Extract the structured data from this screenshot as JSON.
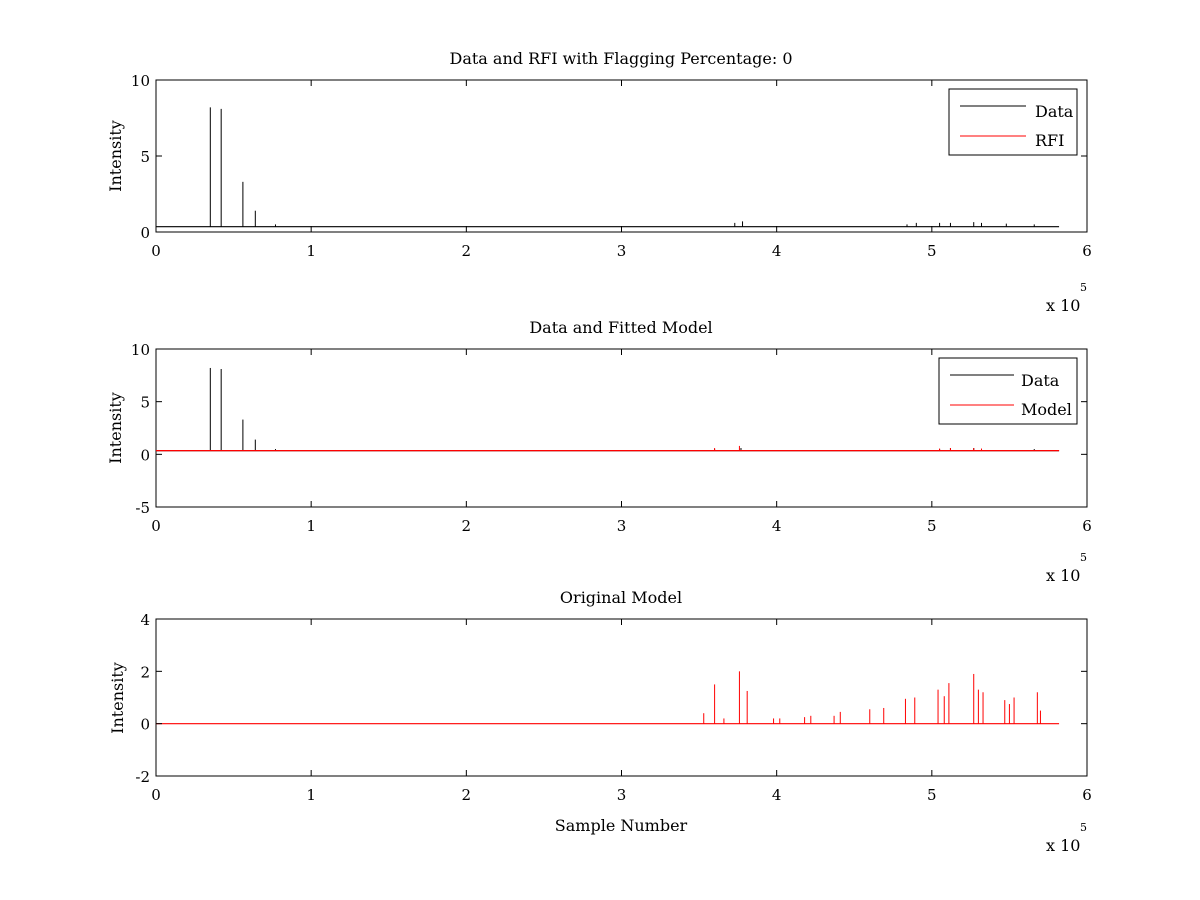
{
  "chart_data": [
    {
      "type": "line",
      "title": "Data and RFI with Flagging Percentage: 0",
      "ylabel": "Intensity",
      "xlabel": "",
      "xlim": [
        0,
        600000
      ],
      "ylim": [
        0,
        10
      ],
      "xticks": [
        0,
        1,
        2,
        3,
        4,
        5,
        6
      ],
      "yticks": [
        0,
        5,
        10
      ],
      "x_exponent": "x 10",
      "x_exponent_power": "5",
      "grid": false,
      "legend": "top-right",
      "baseline": 0.35,
      "series": [
        {
          "name": "Data",
          "color": "#000000",
          "spikes": [
            [
              35000,
              8.2
            ],
            [
              42000,
              8.1
            ],
            [
              56000,
              3.3
            ],
            [
              64000,
              1.4
            ],
            [
              77000,
              0.5
            ],
            [
              373000,
              0.6
            ],
            [
              378000,
              0.7
            ],
            [
              484000,
              0.5
            ],
            [
              490000,
              0.6
            ],
            [
              505000,
              0.6
            ],
            [
              512000,
              0.6
            ],
            [
              527000,
              0.65
            ],
            [
              532000,
              0.6
            ],
            [
              548000,
              0.55
            ],
            [
              566000,
              0.5
            ]
          ]
        },
        {
          "name": "RFI",
          "color": "#ff0000",
          "spikes": []
        }
      ]
    },
    {
      "type": "line",
      "title": "Data and Fitted Model",
      "ylabel": "Intensity",
      "xlabel": "",
      "xlim": [
        0,
        600000
      ],
      "ylim": [
        -5,
        10
      ],
      "xticks": [
        0,
        1,
        2,
        3,
        4,
        5,
        6
      ],
      "yticks": [
        -5,
        0,
        5,
        10
      ],
      "x_exponent": "x 10",
      "x_exponent_power": "5",
      "grid": false,
      "legend": "top-right",
      "baseline": 0.35,
      "series": [
        {
          "name": "Data",
          "color": "#000000",
          "spikes": [
            [
              35000,
              8.2
            ],
            [
              42000,
              8.1
            ],
            [
              56000,
              3.3
            ],
            [
              64000,
              1.4
            ],
            [
              77000,
              0.5
            ],
            [
              360000,
              0.5
            ],
            [
              377000,
              0.6
            ],
            [
              505000,
              0.5
            ],
            [
              512000,
              0.6
            ],
            [
              527000,
              0.6
            ],
            [
              566000,
              0.5
            ]
          ]
        },
        {
          "name": "Model",
          "color": "#ff0000",
          "spikes": [
            [
              360000,
              0.6
            ],
            [
              376000,
              0.8
            ],
            [
              505000,
              0.55
            ],
            [
              512000,
              0.6
            ],
            [
              527000,
              0.6
            ],
            [
              532000,
              0.55
            ]
          ]
        }
      ]
    },
    {
      "type": "line",
      "title": "Original Model",
      "ylabel": "Intensity",
      "xlabel": "Sample Number",
      "xlim": [
        0,
        600000
      ],
      "ylim": [
        -2,
        4
      ],
      "xticks": [
        0,
        1,
        2,
        3,
        4,
        5,
        6
      ],
      "yticks": [
        -2,
        0,
        2,
        4
      ],
      "x_exponent": "x 10",
      "x_exponent_power": "5",
      "grid": false,
      "legend": "none",
      "baseline": 0.0,
      "series": [
        {
          "color": "#ff0000",
          "spikes": [
            [
              353000,
              0.4
            ],
            [
              360000,
              1.5
            ],
            [
              366000,
              0.2
            ],
            [
              376000,
              2.0
            ],
            [
              381000,
              1.25
            ],
            [
              398000,
              0.2
            ],
            [
              402000,
              0.2
            ],
            [
              418000,
              0.25
            ],
            [
              422000,
              0.3
            ],
            [
              437000,
              0.3
            ],
            [
              441000,
              0.45
            ],
            [
              460000,
              0.55
            ],
            [
              469000,
              0.6
            ],
            [
              483000,
              0.95
            ],
            [
              489000,
              1.0
            ],
            [
              504000,
              1.3
            ],
            [
              508000,
              1.05
            ],
            [
              511000,
              1.55
            ],
            [
              527000,
              1.9
            ],
            [
              530000,
              1.3
            ],
            [
              533000,
              1.2
            ],
            [
              547000,
              0.9
            ],
            [
              550000,
              0.75
            ],
            [
              553000,
              1.0
            ],
            [
              568000,
              1.2
            ],
            [
              570000,
              0.5
            ]
          ]
        }
      ]
    }
  ]
}
